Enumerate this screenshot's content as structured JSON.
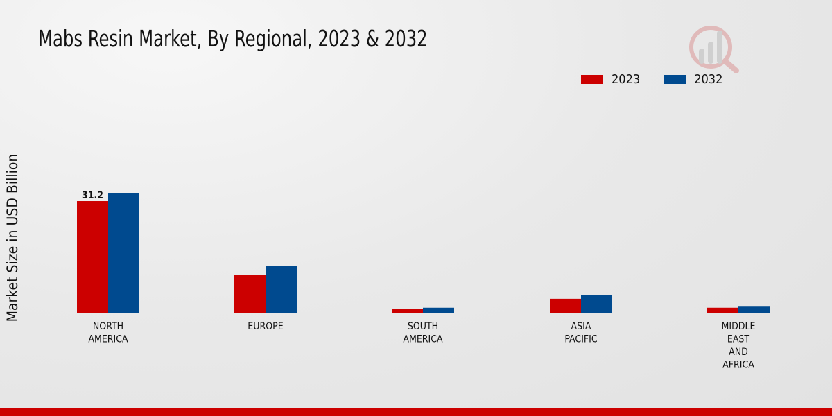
{
  "chart_data": {
    "type": "bar",
    "title": "Mabs Resin Market, By Regional, 2023 & 2032",
    "xlabel": "",
    "ylabel": "Market Size in USD Billion",
    "categories": [
      "NORTH\nAMERICA",
      "EUROPE",
      "SOUTH\nAMERICA",
      "ASIA\nPACIFIC",
      "MIDDLE\nEAST\nAND\nAFRICA"
    ],
    "series": [
      {
        "name": "2023",
        "color": "#cc0000",
        "values": [
          31.2,
          10.5,
          1.0,
          3.9,
          1.4
        ]
      },
      {
        "name": "2032",
        "color": "#004a8f",
        "values": [
          33.5,
          13.0,
          1.4,
          5.0,
          1.7
        ]
      }
    ],
    "data_labels": [
      {
        "series": "2023",
        "category_index": 0,
        "text": "31.2"
      }
    ],
    "ylim": [
      0,
      60
    ],
    "grid": false,
    "legend_position": "top-right"
  }
}
